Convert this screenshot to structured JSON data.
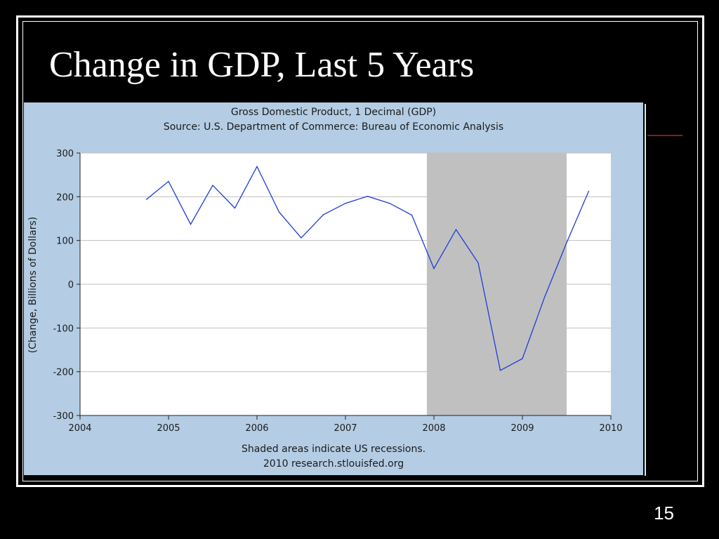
{
  "slide": {
    "title": "Change in GDP, Last 5 Years",
    "page_number": "15"
  },
  "colors": {
    "background": "#000000",
    "panel": "#b4cde4",
    "plot_area": "#ffffff",
    "recession_shade": "#c0c0c0",
    "line": "#1f3dd6",
    "grid": "#bfbfbf"
  },
  "chart_data": {
    "type": "line",
    "title": "Gross Domestic Product, 1 Decimal (GDP)",
    "subtitle": "Source: U.S. Department of Commerce: Bureau of Economic Analysis",
    "xlabel": "",
    "ylabel": "(Change, Billions of Dollars)",
    "xlim": [
      2004,
      2010
    ],
    "ylim": [
      -300,
      300
    ],
    "x_ticks": [
      "2004",
      "2005",
      "2006",
      "2007",
      "2008",
      "2009",
      "2010"
    ],
    "y_ticks": [
      "300",
      "200",
      "100",
      "0",
      "-100",
      "-200",
      "-300"
    ],
    "grid": true,
    "recession": {
      "start": 2007.92,
      "end": 2009.5
    },
    "series": [
      {
        "name": "",
        "x": [
          2004.75,
          2005.0,
          2005.25,
          2005.5,
          2005.75,
          2006.0,
          2006.25,
          2006.5,
          2006.75,
          2007.0,
          2007.25,
          2007.5,
          2007.75,
          2008.0,
          2008.25,
          2008.5,
          2008.75,
          2009.0,
          2009.25,
          2009.5,
          2009.75
        ],
        "values": [
          194,
          235,
          137,
          226,
          174,
          269,
          165,
          106,
          159,
          185,
          201,
          185,
          158,
          36,
          125,
          49,
          -197,
          -170,
          -30,
          95,
          213
        ]
      }
    ],
    "notes": [
      "Shaded areas indicate US recessions.",
      "2010 research.stlouisfed.org"
    ]
  }
}
